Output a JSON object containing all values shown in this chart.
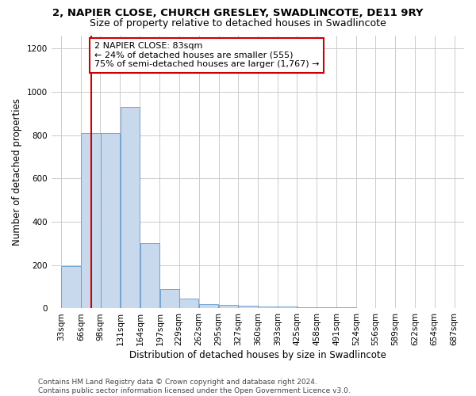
{
  "title_line1": "2, NAPIER CLOSE, CHURCH GRESLEY, SWADLINCOTE, DE11 9RY",
  "title_line2": "Size of property relative to detached houses in Swadlincote",
  "xlabel": "Distribution of detached houses by size in Swadlincote",
  "ylabel": "Number of detached properties",
  "footnote": "Contains HM Land Registry data © Crown copyright and database right 2024.\nContains public sector information licensed under the Open Government Licence v3.0.",
  "bin_edges": [
    33,
    66,
    98,
    131,
    164,
    197,
    229,
    262,
    295,
    327,
    360,
    393,
    425,
    458,
    491,
    524,
    556,
    589,
    622,
    654,
    687,
    720
  ],
  "bar_heights": [
    195,
    810,
    810,
    930,
    300,
    90,
    45,
    20,
    15,
    13,
    10,
    8,
    6,
    5,
    4,
    3,
    2,
    2,
    2,
    2,
    2
  ],
  "bar_color": "#c8d9ee",
  "bar_edgecolor": "#6699cc",
  "property_size": 83,
  "redline_color": "#cc0000",
  "annotation_text": "2 NAPIER CLOSE: 83sqm\n← 24% of detached houses are smaller (555)\n75% of semi-detached houses are larger (1,767) →",
  "annotation_boxcolor": "white",
  "annotation_boxedgecolor": "#cc0000",
  "ylim": [
    0,
    1260
  ],
  "yticks": [
    0,
    200,
    400,
    600,
    800,
    1000,
    1200
  ],
  "tick_labels": [
    "33sqm",
    "66sqm",
    "98sqm",
    "131sqm",
    "164sqm",
    "197sqm",
    "229sqm",
    "262sqm",
    "295sqm",
    "327sqm",
    "360sqm",
    "393sqm",
    "425sqm",
    "458sqm",
    "491sqm",
    "524sqm",
    "556sqm",
    "589sqm",
    "622sqm",
    "654sqm",
    "687sqm"
  ],
  "grid_color": "#cccccc",
  "background_color": "#ffffff",
  "title_fontsize": 9.5,
  "subtitle_fontsize": 9,
  "axis_label_fontsize": 8.5,
  "tick_fontsize": 7.5,
  "annotation_fontsize": 8,
  "footnote_fontsize": 6.5
}
